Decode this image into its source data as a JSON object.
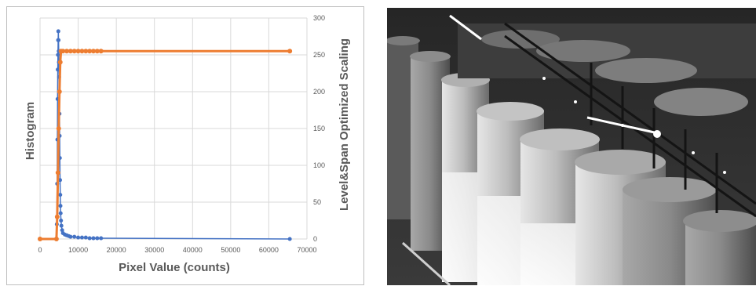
{
  "chart_data": {
    "type": "scatter",
    "title": "",
    "xlabel": "Pixel Value (counts)",
    "ylabel": "Histogram",
    "y2label": "Level&Span Optimized Scaling",
    "xlim": [
      0,
      70000
    ],
    "ylim": [
      0,
      300
    ],
    "x_ticks": [
      "0",
      "10000",
      "20000",
      "30000",
      "40000",
      "50000",
      "60000",
      "70000"
    ],
    "y2_ticks": [
      "0",
      "50",
      "100",
      "150",
      "200",
      "250",
      "300"
    ],
    "grid": true,
    "series": [
      {
        "axis": "left",
        "color": "#4472c4",
        "points": [
          [
            4300,
            0
          ],
          [
            4400,
            20
          ],
          [
            4500,
            75
          ],
          [
            4550,
            135
          ],
          [
            4600,
            190
          ],
          [
            4650,
            230
          ],
          [
            4700,
            250
          ],
          [
            4750,
            270
          ],
          [
            4800,
            282
          ],
          [
            4850,
            270
          ],
          [
            4900,
            255
          ],
          [
            4950,
            240
          ],
          [
            5000,
            220
          ],
          [
            5050,
            200
          ],
          [
            5100,
            170
          ],
          [
            5150,
            140
          ],
          [
            5200,
            110
          ],
          [
            5250,
            80
          ],
          [
            5300,
            60
          ],
          [
            5350,
            45
          ],
          [
            5400,
            35
          ],
          [
            5500,
            25
          ],
          [
            5600,
            18
          ],
          [
            5800,
            12
          ],
          [
            6000,
            8
          ],
          [
            6500,
            6
          ],
          [
            7000,
            5
          ],
          [
            7500,
            4
          ],
          [
            8000,
            3
          ],
          [
            9000,
            3
          ],
          [
            10000,
            2
          ],
          [
            11000,
            2
          ],
          [
            12000,
            2
          ],
          [
            13000,
            1
          ],
          [
            14000,
            1
          ],
          [
            15000,
            1
          ],
          [
            16000,
            1
          ],
          [
            65500,
            0
          ]
        ]
      },
      {
        "axis": "right",
        "color": "#ed7d31",
        "points": [
          [
            0,
            0
          ],
          [
            4300,
            0
          ],
          [
            4500,
            30
          ],
          [
            4700,
            90
          ],
          [
            4900,
            150
          ],
          [
            5100,
            200
          ],
          [
            5300,
            240
          ],
          [
            5500,
            255
          ],
          [
            6000,
            255
          ],
          [
            7000,
            255
          ],
          [
            8000,
            255
          ],
          [
            9000,
            255
          ],
          [
            10000,
            255
          ],
          [
            11000,
            255
          ],
          [
            12000,
            255
          ],
          [
            13000,
            255
          ],
          [
            14000,
            255
          ],
          [
            15000,
            255
          ],
          [
            16000,
            255
          ],
          [
            65500,
            255
          ]
        ]
      }
    ]
  }
}
